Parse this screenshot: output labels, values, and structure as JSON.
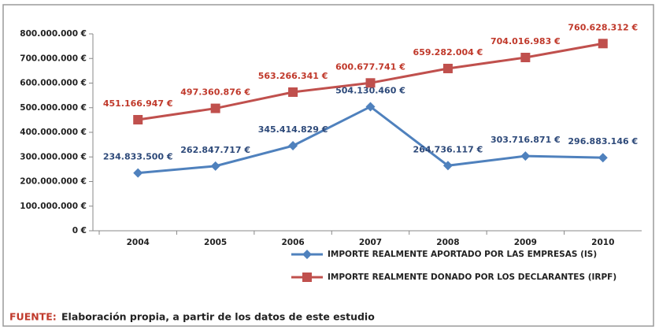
{
  "chart_data": {
    "type": "line",
    "categories": [
      "2004",
      "2005",
      "2006",
      "2007",
      "2008",
      "2009",
      "2010"
    ],
    "series": [
      {
        "name": "IMPORTE REALMENTE APORTADO POR LAS EMPRESAS (IS)",
        "color": "#4f81bd",
        "marker": "diamond",
        "values": [
          234833500,
          262847717,
          345414829,
          504130460,
          264736117,
          303716871,
          296883146
        ],
        "value_labels": [
          "234.833.500 €",
          "262.847.717 €",
          "345.414.829 €",
          "504.130.460 €",
          "264.736.117 €",
          "303.716.871 €",
          "296.883.146 €"
        ]
      },
      {
        "name": "IMPORTE REALMENTE DONADO POR LOS DECLARANTES (IRPF)",
        "color": "#c0504d",
        "marker": "square",
        "values": [
          451166947,
          497360876,
          563266341,
          600677741,
          659282004,
          704016983,
          760628312
        ],
        "value_labels": [
          "451.166.947 €",
          "497.360.876 €",
          "563.266.341 €",
          "600.677.741 €",
          "659.282.004 €",
          "704.016.983 €",
          "760.628.312 €"
        ]
      }
    ],
    "ylim": [
      0,
      800000000
    ],
    "yticks": [
      {
        "value": 0,
        "label": "0 €"
      },
      {
        "value": 100000000,
        "label": "100.000.000 €"
      },
      {
        "value": 200000000,
        "label": "200.000.000 €"
      },
      {
        "value": 300000000,
        "label": "300.000.000 €"
      },
      {
        "value": 400000000,
        "label": "400.000.000 €"
      },
      {
        "value": 500000000,
        "label": "500.000.000 €"
      },
      {
        "value": 600000000,
        "label": "600.000.000 €"
      },
      {
        "value": 700000000,
        "label": "700.000.000 €"
      },
      {
        "value": 800000000,
        "label": "800.000.000 €"
      }
    ],
    "grid": false,
    "legend": "bottom",
    "source": {
      "label": "FUENTE:",
      "text": "Elaboración propia, a partir de los datos de este estudio"
    }
  }
}
